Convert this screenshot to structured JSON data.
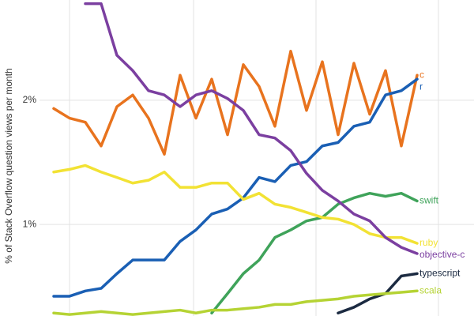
{
  "chart_data": {
    "type": "line",
    "y_label": "% of Stack Overflow question views per month",
    "log_scale": true,
    "grid": true,
    "ylim": [
      0.6,
      3.5
    ],
    "yticks": [
      {
        "value": 1,
        "label": "1%"
      },
      {
        "value": 2,
        "label": "2%"
      }
    ],
    "categories": [
      null,
      null,
      null,
      null,
      null,
      null,
      null,
      null,
      null,
      null,
      null,
      null,
      null,
      null,
      null,
      null,
      null,
      null,
      null,
      null,
      null,
      null,
      null,
      null
    ],
    "series": [
      {
        "name": "c",
        "color": "#e8731e",
        "values": [
          1.91,
          1.81,
          1.77,
          1.55,
          1.93,
          2.06,
          1.81,
          1.48,
          2.3,
          1.81,
          2.25,
          1.65,
          2.44,
          2.16,
          1.73,
          2.63,
          1.89,
          2.48,
          1.65,
          2.46,
          1.85,
          2.36,
          1.55,
          2.3
        ]
      },
      {
        "name": "r",
        "color": "#1a5fb4",
        "values": [
          0.67,
          0.67,
          0.69,
          0.7,
          0.76,
          0.82,
          0.82,
          0.82,
          0.91,
          0.97,
          1.06,
          1.09,
          1.16,
          1.3,
          1.27,
          1.39,
          1.42,
          1.55,
          1.58,
          1.73,
          1.77,
          2.06,
          2.11,
          2.25
        ]
      },
      {
        "name": "swift",
        "color": "#3fa35a",
        "values": [
          null,
          null,
          null,
          null,
          null,
          null,
          null,
          null,
          null,
          null,
          0.61,
          0.68,
          0.76,
          0.82,
          0.93,
          0.97,
          1.02,
          1.04,
          1.12,
          1.16,
          1.19,
          1.17,
          1.19,
          1.14
        ]
      },
      {
        "name": "ruby",
        "color": "#f2e234",
        "values": [
          1.34,
          1.36,
          1.39,
          1.34,
          1.3,
          1.26,
          1.28,
          1.34,
          1.23,
          1.23,
          1.26,
          1.26,
          1.15,
          1.19,
          1.12,
          1.1,
          1.07,
          1.04,
          1.03,
          1.0,
          0.95,
          0.93,
          0.93,
          0.9
        ]
      },
      {
        "name": "objective-c",
        "color": "#7b3fa0",
        "values": [
          null,
          null,
          3.43,
          3.43,
          2.57,
          2.36,
          2.11,
          2.06,
          1.93,
          2.06,
          2.11,
          2.02,
          1.89,
          1.65,
          1.62,
          1.51,
          1.33,
          1.21,
          1.14,
          1.06,
          1.02,
          0.93,
          0.88,
          0.85
        ]
      },
      {
        "name": "typescript",
        "color": "#1b2a41",
        "values": [
          null,
          null,
          null,
          null,
          null,
          null,
          null,
          null,
          null,
          null,
          null,
          null,
          null,
          null,
          null,
          null,
          null,
          null,
          0.61,
          0.63,
          0.66,
          0.68,
          0.75,
          0.76
        ]
      },
      {
        "name": "scala",
        "color": "#b5d334",
        "values": [
          0.61,
          0.605,
          0.61,
          0.615,
          0.61,
          0.605,
          0.61,
          0.615,
          0.62,
          0.61,
          0.62,
          0.62,
          0.625,
          0.63,
          0.64,
          0.64,
          0.65,
          0.655,
          0.66,
          0.67,
          0.675,
          0.68,
          0.685,
          0.69
        ]
      }
    ]
  }
}
